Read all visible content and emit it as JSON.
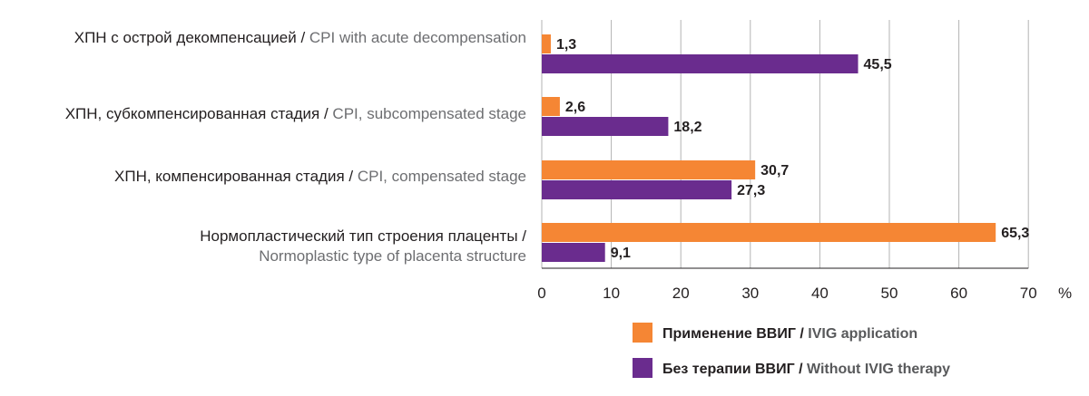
{
  "chart_data": {
    "type": "bar",
    "orientation": "horizontal",
    "categories": [
      {
        "ru": "ХПН с острой декомпенсацией /",
        "en": "CPI with acute decompensation"
      },
      {
        "ru": "ХПН, субкомпенсированная стадия /",
        "en": "CPI, subcompensated stage"
      },
      {
        "ru": "ХПН, компенсированная стадия /",
        "en": "CPI, compensated stage"
      },
      {
        "ru": "Нормопластический тип строения плаценты /",
        "en": "Normoplastic type of placenta structure"
      }
    ],
    "series": [
      {
        "name_ru": "Применение ВВИГ /",
        "name_en": "IVIG application",
        "color": "#f58634",
        "values": [
          1.3,
          2.6,
          30.7,
          65.3
        ],
        "labels": [
          "1,3",
          "2,6",
          "30,7",
          "65,3"
        ]
      },
      {
        "name_ru": "Без терапии ВВИГ /",
        "name_en": "Without IVIG therapy",
        "color": "#6a2c8e",
        "values": [
          45.5,
          18.2,
          27.3,
          9.1
        ],
        "labels": [
          "45,5",
          "18,2",
          "27,3",
          "9,1"
        ]
      }
    ],
    "xlim": [
      0,
      70
    ],
    "xticks": [
      0,
      10,
      20,
      30,
      40,
      50,
      60,
      70
    ],
    "unit": "%",
    "grid": true,
    "gridColor": "#b3b3b3",
    "legend": "bottom"
  }
}
